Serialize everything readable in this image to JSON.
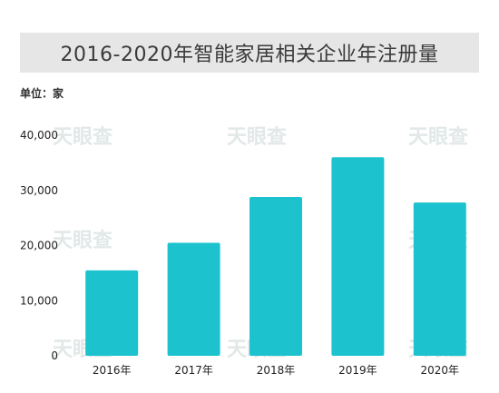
{
  "title": "2016-2020年智能家居相关企业年注册量",
  "unit_label": "单位：家",
  "watermark_text": "天眼查",
  "colors": {
    "bar": "#1cc3cf",
    "title_bg": "#e6e6e6",
    "watermark": "#e2e8e8"
  },
  "chart_data": {
    "type": "bar",
    "title": "2016-2020年智能家居相关企业年注册量",
    "ylabel": "单位：家",
    "xlabel": "",
    "categories": [
      "2016年",
      "2017年",
      "2018年",
      "2019年",
      "2020年"
    ],
    "values": [
      15500,
      20500,
      28800,
      36000,
      27800
    ],
    "ylim": [
      0,
      40000
    ],
    "yticks": [
      0,
      10000,
      20000,
      30000,
      40000
    ],
    "ytick_labels": [
      "0",
      "10,000",
      "20,000",
      "30,000",
      "40,000"
    ],
    "grid": false,
    "legend": "none"
  }
}
